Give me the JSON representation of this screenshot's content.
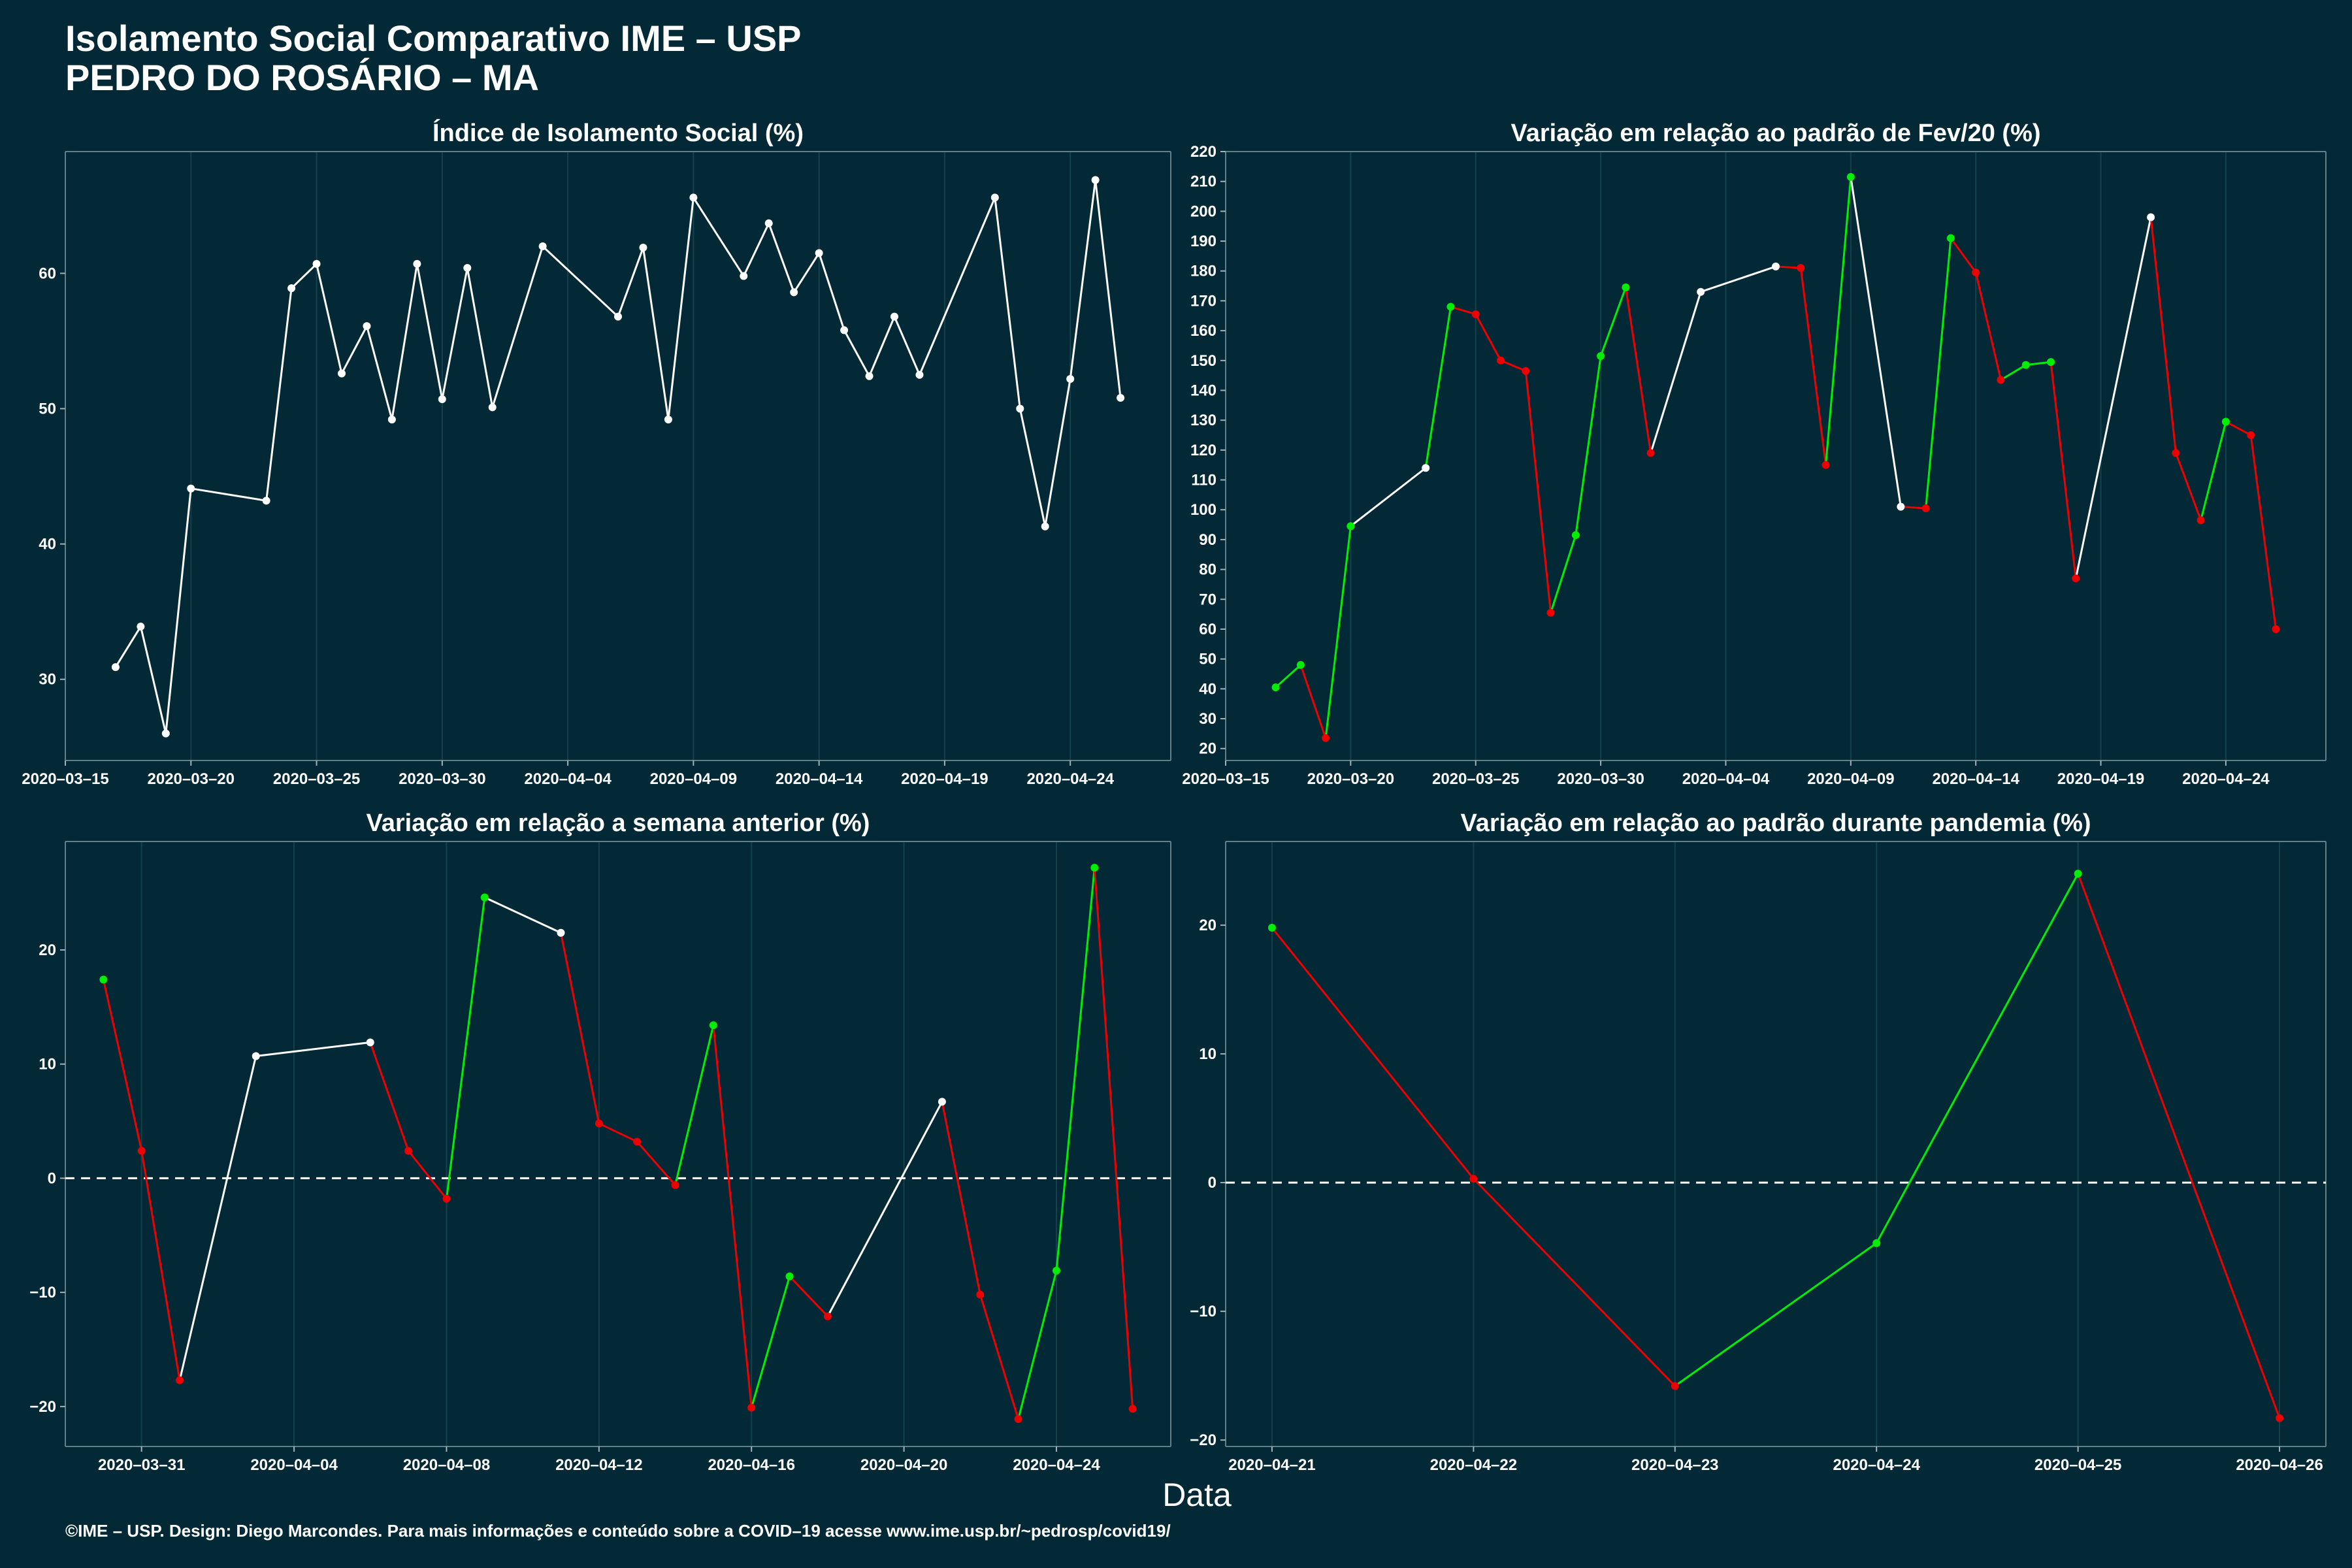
{
  "header": {
    "title_line1": "Isolamento Social Comparativo IME – USP",
    "title_line2": "PEDRO DO ROSÁRIO – MA"
  },
  "x_axis_label": "Data",
  "footer": "©IME – USP. Design: Diego Marcondes. Para mais informações e conteúdo sobre a COVID–19 acesse www.ime.usp.br/~pedrosp/covid19/",
  "colors": {
    "background": "#022935",
    "white": "#ffffff",
    "up": "#00ee00",
    "down": "#ee0000",
    "grid": "#15414c"
  },
  "chart_data": [
    {
      "type": "line",
      "title": "Índice de Isolamento Social (%)",
      "xlim": [
        "2020-03-15",
        "2020-04-28"
      ],
      "ylim": [
        24,
        69
      ],
      "x_ticks": [
        "2020-03-15",
        "2020-03-20",
        "2020-03-25",
        "2020-03-30",
        "2020-04-04",
        "2020-04-09",
        "2020-04-14",
        "2020-04-19",
        "2020-04-24"
      ],
      "y_ticks": [
        30,
        40,
        50,
        60
      ],
      "zero_line": false,
      "color_mode": "white",
      "points": [
        [
          "2020-03-17",
          30.9
        ],
        [
          "2020-03-18",
          33.9
        ],
        [
          "2020-03-19",
          26.0
        ],
        [
          "2020-03-20",
          44.1
        ],
        [
          "2020-03-23",
          43.2
        ],
        [
          "2020-03-24",
          58.9
        ],
        [
          "2020-03-25",
          60.7
        ],
        [
          "2020-03-26",
          52.6
        ],
        [
          "2020-03-27",
          56.1
        ],
        [
          "2020-03-28",
          49.2
        ],
        [
          "2020-03-29",
          60.7
        ],
        [
          "2020-03-30",
          50.7
        ],
        [
          "2020-03-31",
          60.4
        ],
        [
          "2020-04-01",
          50.1
        ],
        [
          "2020-04-03",
          62.0
        ],
        [
          "2020-04-06",
          56.8
        ],
        [
          "2020-04-07",
          61.9
        ],
        [
          "2020-04-08",
          49.2
        ],
        [
          "2020-04-09",
          65.6
        ],
        [
          "2020-04-11",
          59.8
        ],
        [
          "2020-04-12",
          63.7
        ],
        [
          "2020-04-13",
          58.6
        ],
        [
          "2020-04-14",
          61.5
        ],
        [
          "2020-04-15",
          55.8
        ],
        [
          "2020-04-16",
          52.4
        ],
        [
          "2020-04-17",
          56.8
        ],
        [
          "2020-04-18",
          52.5
        ],
        [
          "2020-04-21",
          65.6
        ],
        [
          "2020-04-22",
          50.0
        ],
        [
          "2020-04-23",
          41.3
        ],
        [
          "2020-04-24",
          52.2
        ],
        [
          "2020-04-25",
          66.9
        ],
        [
          "2020-04-26",
          50.8
        ]
      ]
    },
    {
      "type": "line",
      "title": "Variação em relação ao padrão de Fev/20 (%)",
      "xlim": [
        "2020-03-15",
        "2020-04-28"
      ],
      "ylim": [
        16,
        220
      ],
      "x_ticks": [
        "2020-03-15",
        "2020-03-20",
        "2020-03-25",
        "2020-03-30",
        "2020-04-04",
        "2020-04-09",
        "2020-04-14",
        "2020-04-19",
        "2020-04-24"
      ],
      "y_ticks": [
        20,
        30,
        40,
        50,
        60,
        70,
        80,
        90,
        100,
        110,
        120,
        130,
        140,
        150,
        160,
        170,
        180,
        190,
        200,
        210,
        220
      ],
      "zero_line": false,
      "color_mode": "consecutive",
      "points": [
        [
          "2020-03-17",
          40.5
        ],
        [
          "2020-03-18",
          48.0
        ],
        [
          "2020-03-19",
          23.5
        ],
        [
          "2020-03-20",
          94.5
        ],
        [
          "2020-03-23",
          114.0
        ],
        [
          "2020-03-24",
          168.0
        ],
        [
          "2020-03-25",
          165.5
        ],
        [
          "2020-03-26",
          150.0
        ],
        [
          "2020-03-27",
          146.5
        ],
        [
          "2020-03-28",
          65.5
        ],
        [
          "2020-03-29",
          91.5
        ],
        [
          "2020-03-30",
          151.5
        ],
        [
          "2020-03-31",
          174.5
        ],
        [
          "2020-04-01",
          119.0
        ],
        [
          "2020-04-03",
          173.0
        ],
        [
          "2020-04-06",
          181.5
        ],
        [
          "2020-04-07",
          181.0
        ],
        [
          "2020-04-08",
          115.0
        ],
        [
          "2020-04-09",
          211.5
        ],
        [
          "2020-04-11",
          101.0
        ],
        [
          "2020-04-12",
          100.5
        ],
        [
          "2020-04-13",
          191.0
        ],
        [
          "2020-04-14",
          179.5
        ],
        [
          "2020-04-15",
          143.5
        ],
        [
          "2020-04-16",
          148.5
        ],
        [
          "2020-04-17",
          149.5
        ],
        [
          "2020-04-18",
          77.0
        ],
        [
          "2020-04-21",
          198.0
        ],
        [
          "2020-04-22",
          119.0
        ],
        [
          "2020-04-23",
          96.5
        ],
        [
          "2020-04-24",
          129.5
        ],
        [
          "2020-04-25",
          125.0
        ],
        [
          "2020-04-26",
          60.0
        ]
      ]
    },
    {
      "type": "line",
      "title": "Variação em relação a semana anterior (%)",
      "xlim": [
        "2020-03-29",
        "2020-04-27"
      ],
      "ylim": [
        -23.5,
        29.5
      ],
      "x_ticks": [
        "2020-03-31",
        "2020-04-04",
        "2020-04-08",
        "2020-04-12",
        "2020-04-16",
        "2020-04-20",
        "2020-04-24"
      ],
      "y_ticks": [
        -20,
        -10,
        0,
        10,
        20
      ],
      "zero_line": true,
      "color_mode": "consecutive",
      "points": [
        [
          "2020-03-30",
          17.4
        ],
        [
          "2020-03-31",
          2.4
        ],
        [
          "2020-04-01",
          -17.7
        ],
        [
          "2020-04-03",
          10.7
        ],
        [
          "2020-04-06",
          11.9
        ],
        [
          "2020-04-07",
          2.4
        ],
        [
          "2020-04-08",
          -1.8
        ],
        [
          "2020-04-09",
          24.6
        ],
        [
          "2020-04-11",
          21.5
        ],
        [
          "2020-04-12",
          4.8
        ],
        [
          "2020-04-13",
          3.2
        ],
        [
          "2020-04-14",
          -0.6
        ],
        [
          "2020-04-15",
          13.4
        ],
        [
          "2020-04-16",
          -20.1
        ],
        [
          "2020-04-17",
          -8.6
        ],
        [
          "2020-04-18",
          -12.1
        ],
        [
          "2020-04-21",
          6.7
        ],
        [
          "2020-04-22",
          -10.2
        ],
        [
          "2020-04-23",
          -21.1
        ],
        [
          "2020-04-24",
          -8.1
        ],
        [
          "2020-04-25",
          27.2
        ],
        [
          "2020-04-26",
          -20.2
        ]
      ]
    },
    {
      "type": "line",
      "title": "Variação em relação ao padrão durante pandemia (%)",
      "xlim": [
        "2020-04-20.77",
        "2020-04-26.23"
      ],
      "ylim": [
        -20.5,
        26.5
      ],
      "x_ticks": [
        "2020-04-21",
        "2020-04-22",
        "2020-04-23",
        "2020-04-24",
        "2020-04-25",
        "2020-04-26"
      ],
      "y_ticks": [
        -20,
        -10,
        0,
        10,
        20
      ],
      "zero_line": true,
      "color_mode": "sign",
      "points": [
        [
          "2020-04-21",
          19.8
        ],
        [
          "2020-04-22",
          0.3
        ],
        [
          "2020-04-23",
          -15.8
        ],
        [
          "2020-04-24",
          -4.7
        ],
        [
          "2020-04-25",
          24.0
        ],
        [
          "2020-04-26",
          -18.3
        ]
      ]
    }
  ]
}
